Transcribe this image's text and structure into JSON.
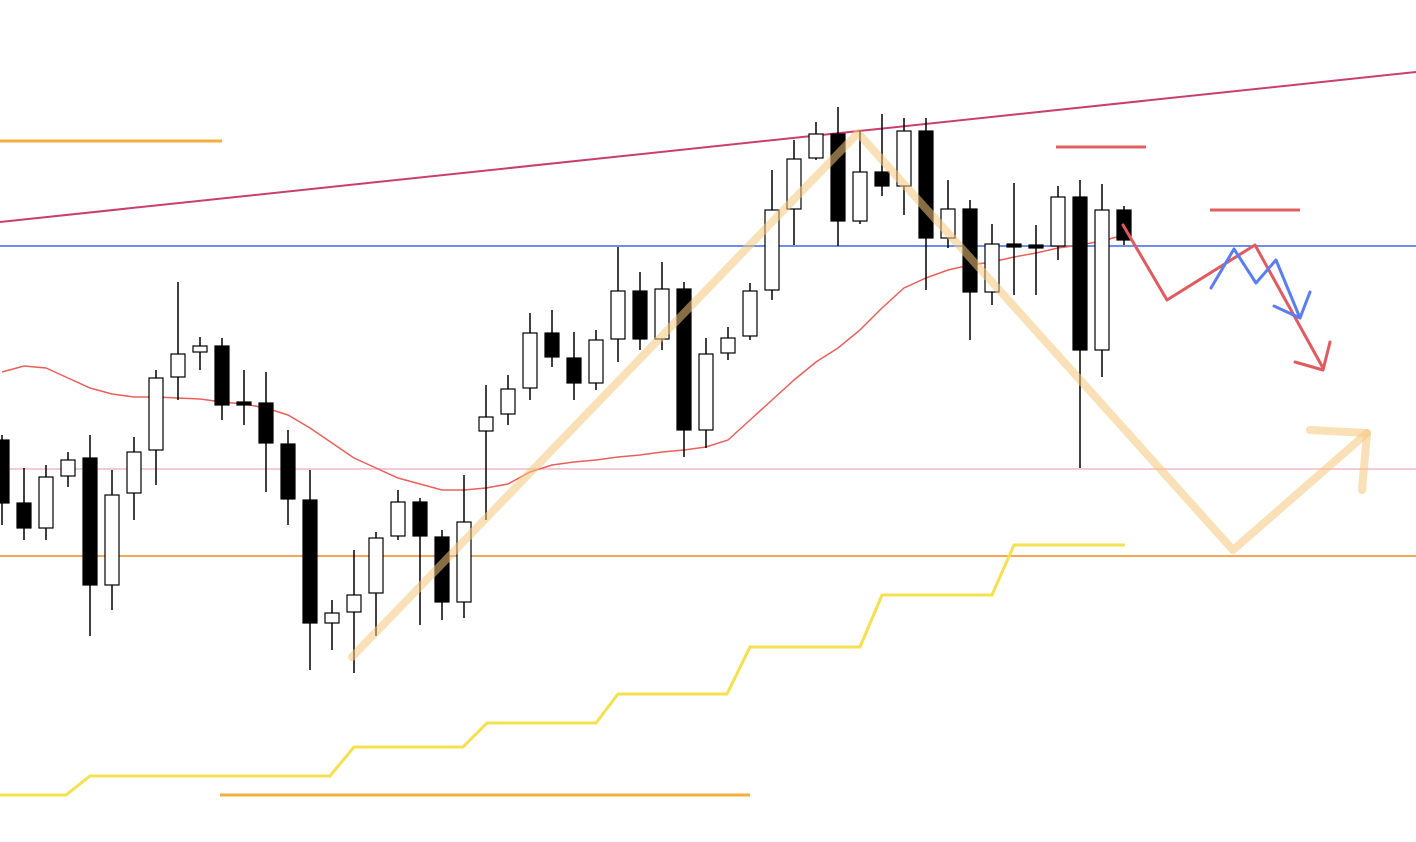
{
  "chart_data": {
    "type": "candlestick",
    "ylim": [
      0,
      842
    ],
    "up_color": "#ffffff",
    "down_color": "#000000",
    "ma_color": "#e8605a",
    "open": [
      402,
      339,
      314,
      366,
      384,
      257,
      349,
      392,
      465,
      490,
      496,
      440,
      439,
      398,
      342,
      219,
      230,
      249,
      306,
      340,
      305,
      240,
      411,
      428,
      454,
      509,
      484,
      459,
      503,
      551,
      503,
      553,
      412,
      489,
      506,
      552,
      633,
      684,
      708,
      621,
      670,
      656,
      711,
      604,
      633,
      550,
      598,
      597,
      596,
      645,
      492,
      632
    ],
    "high": [
      407,
      374,
      377,
      390,
      407,
      372,
      405,
      472,
      560,
      505,
      504,
      472,
      470,
      412,
      372,
      242,
      292,
      310,
      352,
      344,
      312,
      367,
      457,
      467,
      529,
      532,
      510,
      512,
      595,
      570,
      580,
      560,
      504,
      515,
      559,
      672,
      702,
      720,
      735,
      712,
      728,
      724,
      724,
      662,
      642,
      618,
      659,
      617,
      656,
      662,
      658,
      636
    ],
    "low": [
      317,
      302,
      302,
      355,
      206,
      232,
      322,
      357,
      442,
      472,
      422,
      417,
      350,
      317,
      172,
      192,
      169,
      206,
      302,
      217,
      222,
      224,
      322,
      417,
      442,
      475,
      442,
      452,
      480,
      492,
      492,
      385,
      394,
      482,
      502,
      542,
      597,
      682,
      596,
      618,
      646,
      627,
      552,
      594,
      502,
      537,
      547,
      547,
      582,
      374,
      465,
      597
    ],
    "close": [
      339,
      314,
      365,
      382,
      257,
      347,
      390,
      464,
      488,
      496,
      437,
      437,
      399,
      343,
      219,
      229,
      247,
      304,
      340,
      306,
      240,
      320,
      425,
      453,
      509,
      485,
      459,
      502,
      551,
      503,
      553,
      412,
      488,
      504,
      551,
      632,
      683,
      708,
      621,
      670,
      656,
      711,
      604,
      633,
      550,
      598,
      595,
      594,
      645,
      492,
      632,
      602
    ],
    "ma": [
      470,
      476,
      474,
      464,
      454,
      448,
      445,
      445,
      444,
      443,
      440,
      438,
      434,
      427,
      414,
      399,
      384,
      374,
      364,
      358,
      352,
      352,
      354,
      358,
      370,
      377,
      380,
      382,
      385,
      387,
      390,
      392,
      395,
      402,
      422,
      442,
      462,
      480,
      494,
      512,
      534,
      554,
      564,
      572,
      577,
      580,
      585,
      589,
      594,
      597,
      601,
      607
    ]
  }
}
